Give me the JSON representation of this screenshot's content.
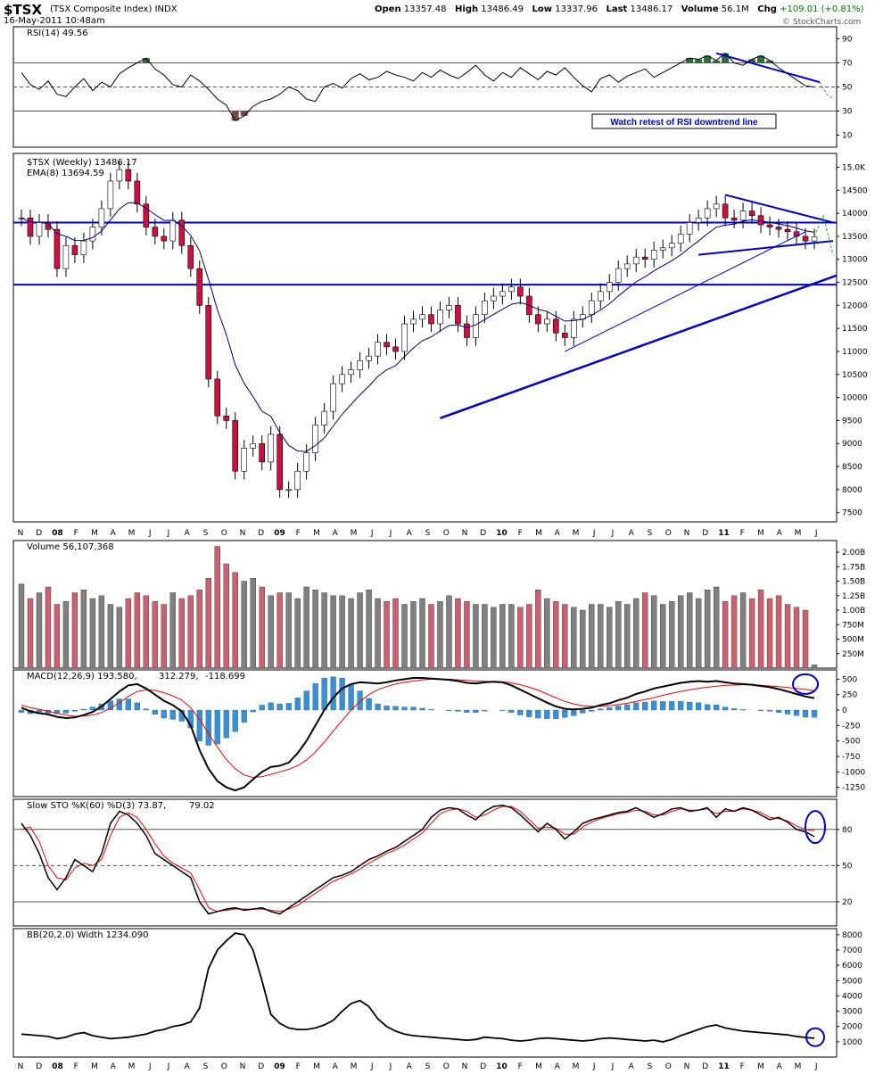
{
  "header": {
    "symbol": "$TSX",
    "name": "(TSX Composite Index)",
    "exchange": "INDX",
    "date": "16-May-2011 10:48am",
    "open_label": "Open",
    "open": "13357.48",
    "high_label": "High",
    "high": "13486.49",
    "low_label": "Low",
    "low": "13337.96",
    "last_label": "Last",
    "last": "13486.17",
    "volume_label": "Volume",
    "volume": "56.1M",
    "chg_label": "Chg",
    "chg": "+109.01 (+0.81%)",
    "chg_color": "#008000",
    "copyright": "© StockCharts.com"
  },
  "colors": {
    "up_candle": "#ffffff",
    "down_candle": "#cc1140",
    "trendline": "#0000cc",
    "ema": "#000080",
    "volume_up": "#808080",
    "volume_down": "#cc6070",
    "macd_hist": "#3a8fd0",
    "macd_signal": "#ff0000",
    "sto_d": "#ff0000",
    "rsi_overbought": "#2e6b3a",
    "rsi_oversold": "#7a4a4a",
    "projection": "#22aa22"
  },
  "x_axis": {
    "months": [
      "N",
      "D",
      "08",
      "F",
      "M",
      "A",
      "M",
      "J",
      "J",
      "A",
      "S",
      "O",
      "N",
      "D",
      "09",
      "F",
      "M",
      "A",
      "M",
      "J",
      "J",
      "A",
      "S",
      "O",
      "N",
      "D",
      "10",
      "F",
      "M",
      "A",
      "M",
      "J",
      "J",
      "A",
      "S",
      "O",
      "N",
      "D",
      "11",
      "F",
      "M",
      "A",
      "M",
      "J"
    ]
  },
  "chart_data": [
    {
      "type": "line",
      "title": "RSI(14) 49.56",
      "ylim": [
        0,
        100
      ],
      "yticks": [
        10,
        30,
        50,
        70,
        90
      ],
      "reference_lines": [
        30,
        50,
        70
      ],
      "annotation": "Watch retest of RSI downtrend line",
      "series": [
        {
          "name": "RSI(14)",
          "values": [
            62,
            52,
            48,
            55,
            44,
            42,
            50,
            57,
            47,
            54,
            50,
            61,
            66,
            70,
            74,
            65,
            60,
            52,
            50,
            60,
            55,
            48,
            40,
            35,
            22,
            26,
            34,
            38,
            40,
            44,
            50,
            47,
            40,
            38,
            50,
            53,
            49,
            57,
            61,
            56,
            58,
            63,
            60,
            58,
            55,
            62,
            58,
            64,
            60,
            57,
            62,
            68,
            60,
            55,
            62,
            58,
            66,
            61,
            56,
            63,
            60,
            66,
            58,
            51,
            46,
            57,
            60,
            54,
            59,
            62,
            65,
            58,
            62,
            66,
            70,
            74,
            73,
            76,
            72,
            78,
            70,
            68,
            73,
            76,
            72,
            66,
            61,
            56,
            51,
            50
          ]
        }
      ]
    },
    {
      "type": "candlestick",
      "title": "$TSX (Weekly) 13486.17",
      "ema_label": "EMA(8) 13694.59",
      "ylim": [
        7300,
        15300
      ],
      "yticks": [
        7500,
        8000,
        8500,
        9000,
        9500,
        10000,
        10500,
        11000,
        11500,
        12000,
        12500,
        13000,
        13500,
        14000,
        14500,
        "15.0K"
      ],
      "close": [
        13900,
        13500,
        13800,
        13650,
        12800,
        13300,
        13100,
        13400,
        13700,
        14100,
        14700,
        14950,
        14700,
        14200,
        13700,
        13500,
        13400,
        13850,
        13300,
        12800,
        12000,
        10400,
        9600,
        9500,
        8400,
        8900,
        9000,
        8600,
        9200,
        8000,
        8000,
        8400,
        8800,
        9400,
        9700,
        10300,
        10500,
        10600,
        10800,
        10900,
        11200,
        11100,
        11000,
        11600,
        11700,
        11800,
        11600,
        11900,
        12000,
        11600,
        11300,
        11800,
        12100,
        12200,
        12300,
        12400,
        12200,
        11800,
        11600,
        11700,
        11400,
        11300,
        11700,
        11800,
        12100,
        12300,
        12500,
        12800,
        12900,
        13050,
        13000,
        13200,
        13250,
        13350,
        13550,
        13800,
        13900,
        14100,
        14200,
        13900,
        13850,
        14050,
        13950,
        13750,
        13700,
        13650,
        13600,
        13500,
        13400,
        13486
      ]
    },
    {
      "type": "bar",
      "title": "Volume 56,107,368",
      "ylim": [
        0,
        2200
      ],
      "yticks": [
        "250M",
        "500M",
        "750M",
        "1.00B",
        "1.25B",
        "1.50B",
        "1.75B",
        "2.00B"
      ],
      "values": [
        1450,
        1200,
        1300,
        1400,
        1100,
        1150,
        1300,
        1350,
        1200,
        1250,
        1100,
        1050,
        1200,
        1300,
        1250,
        1150,
        1100,
        1300,
        1200,
        1250,
        1350,
        1550,
        2100,
        1800,
        1650,
        1500,
        1550,
        1400,
        1250,
        1300,
        1300,
        1200,
        1400,
        1350,
        1300,
        1250,
        1250,
        1200,
        1300,
        1350,
        1200,
        1150,
        1200,
        1100,
        1150,
        1200,
        1100,
        1150,
        1250,
        1200,
        1150,
        1100,
        1100,
        1050,
        1100,
        1100,
        1050,
        1100,
        1350,
        1200,
        1150,
        1100,
        1050,
        1000,
        1100,
        1100,
        1050,
        1150,
        1100,
        1200,
        1300,
        1250,
        1100,
        1150,
        1250,
        1300,
        1200,
        1350,
        1400,
        1150,
        1250,
        1300,
        1200,
        1350,
        1200,
        1250,
        1100,
        1050,
        1000,
        56
      ],
      "up": [
        true,
        false,
        true,
        false,
        false,
        true,
        false,
        true,
        true,
        true,
        true,
        true,
        false,
        false,
        false,
        false,
        false,
        true,
        false,
        false,
        false,
        false,
        false,
        false,
        false,
        true,
        true,
        false,
        true,
        false,
        true,
        true,
        true,
        true,
        true,
        true,
        true,
        true,
        true,
        true,
        true,
        false,
        false,
        true,
        true,
        true,
        false,
        true,
        true,
        false,
        false,
        true,
        true,
        true,
        true,
        true,
        false,
        false,
        false,
        true,
        false,
        false,
        true,
        true,
        true,
        true,
        true,
        true,
        true,
        true,
        false,
        true,
        true,
        true,
        true,
        true,
        true,
        true,
        true,
        false,
        false,
        true,
        false,
        false,
        false,
        false,
        false,
        false,
        false,
        true
      ]
    },
    {
      "type": "line",
      "title": "MACD(12,26,9) 193.580, 312.279, -118.699",
      "macd_label": "MACD(12,26,9) 193.580,",
      "signal_label": "312.279,",
      "hist_label": "-118.699",
      "ylim": [
        -1400,
        650
      ],
      "yticks": [
        -1250,
        -1000,
        -750,
        -500,
        -250,
        0,
        250,
        500
      ],
      "series": [
        {
          "name": "MACD",
          "values": [
            40,
            -20,
            -50,
            -70,
            -110,
            -130,
            -120,
            -80,
            -30,
            60,
            180,
            300,
            400,
            420,
            350,
            250,
            150,
            80,
            -20,
            -250,
            -650,
            -950,
            -1150,
            -1250,
            -1300,
            -1250,
            -1120,
            -1000,
            -920,
            -900,
            -850,
            -700,
            -500,
            -250,
            0,
            200,
            350,
            420,
            450,
            440,
            430,
            450,
            480,
            500,
            520,
            520,
            510,
            500,
            490,
            470,
            440,
            430,
            450,
            460,
            450,
            400,
            330,
            260,
            190,
            120,
            60,
            20,
            10,
            20,
            40,
            80,
            110,
            160,
            200,
            260,
            300,
            350,
            380,
            410,
            440,
            460,
            470,
            460,
            470,
            450,
            430,
            420,
            410,
            390,
            370,
            340,
            300,
            260,
            220,
            194
          ]
        },
        {
          "name": "Signal",
          "values": [
            80,
            40,
            10,
            -20,
            -50,
            -80,
            -100,
            -95,
            -80,
            -40,
            30,
            120,
            220,
            300,
            330,
            320,
            280,
            230,
            160,
            40,
            -150,
            -380,
            -600,
            -800,
            -950,
            -1050,
            -1090,
            -1080,
            -1040,
            -1000,
            -960,
            -900,
            -810,
            -680,
            -520,
            -340,
            -170,
            0,
            140,
            250,
            330,
            380,
            420,
            450,
            470,
            490,
            500,
            500,
            500,
            490,
            480,
            470,
            465,
            460,
            458,
            440,
            410,
            370,
            320,
            260,
            200,
            140,
            100,
            70,
            60,
            60,
            70,
            90,
            110,
            140,
            170,
            200,
            240,
            270,
            300,
            330,
            350,
            370,
            385,
            400,
            405,
            410,
            410,
            400,
            390,
            380,
            365,
            350,
            335,
            312
          ]
        }
      ]
    },
    {
      "type": "line",
      "title": "Slow STO %K(60) %D(3) 73.87, 79.02",
      "k_label": "Slow STO %K(60) %D(3) 73.87,",
      "d_label": "79.02",
      "ylim": [
        0,
        105
      ],
      "yticks": [
        20,
        50,
        80
      ],
      "reference_lines": [
        20,
        50,
        80
      ],
      "series": [
        {
          "name": "%K",
          "values": [
            85,
            75,
            60,
            40,
            30,
            40,
            55,
            50,
            45,
            60,
            85,
            95,
            92,
            85,
            75,
            60,
            55,
            50,
            45,
            40,
            20,
            10,
            12,
            14,
            15,
            13,
            14,
            15,
            12,
            10,
            15,
            20,
            25,
            30,
            35,
            40,
            42,
            45,
            50,
            55,
            58,
            62,
            65,
            70,
            75,
            80,
            90,
            96,
            98,
            97,
            92,
            88,
            95,
            99,
            100,
            98,
            92,
            85,
            78,
            85,
            80,
            72,
            78,
            85,
            88,
            90,
            92,
            94,
            95,
            98,
            94,
            90,
            93,
            97,
            98,
            95,
            96,
            98,
            90,
            97,
            95,
            98,
            96,
            92,
            88,
            90,
            86,
            80,
            78,
            74
          ]
        },
        {
          "name": "%D",
          "values": [
            80,
            82,
            70,
            50,
            40,
            38,
            48,
            52,
            50,
            55,
            75,
            90,
            94,
            90,
            80,
            68,
            58,
            52,
            48,
            44,
            30,
            15,
            12,
            13,
            14,
            14,
            14,
            14,
            13,
            12,
            14,
            17,
            22,
            27,
            32,
            37,
            40,
            43,
            47,
            52,
            56,
            60,
            63,
            67,
            72,
            77,
            85,
            93,
            96,
            97,
            95,
            90,
            92,
            96,
            99,
            99,
            95,
            88,
            81,
            82,
            81,
            76,
            76,
            82,
            86,
            89,
            91,
            93,
            94,
            96,
            95,
            92,
            92,
            95,
            97,
            96,
            96,
            97,
            93,
            95,
            95,
            97,
            96,
            94,
            90,
            89,
            87,
            83,
            80,
            79
          ]
        }
      ]
    },
    {
      "type": "line",
      "title": "BB(20,2.0) Width 1234.090",
      "ylim": [
        0,
        8400
      ],
      "yticks": [
        1000,
        2000,
        3000,
        4000,
        5000,
        6000,
        7000,
        8000
      ],
      "series": [
        {
          "name": "BB Width",
          "values": [
            1500,
            1450,
            1400,
            1350,
            1200,
            1300,
            1500,
            1600,
            1400,
            1300,
            1200,
            1250,
            1300,
            1400,
            1500,
            1700,
            1800,
            2000,
            2100,
            2300,
            3200,
            5800,
            7000,
            7600,
            8100,
            8000,
            7000,
            5000,
            2800,
            2200,
            1900,
            1800,
            1800,
            1900,
            2100,
            2400,
            3000,
            3500,
            3700,
            3300,
            2500,
            2000,
            1700,
            1500,
            1400,
            1350,
            1300,
            1250,
            1200,
            1150,
            1100,
            1150,
            1300,
            1250,
            1200,
            1100,
            1050,
            1100,
            1200,
            1250,
            1200,
            1150,
            1100,
            1050,
            1100,
            1200,
            1250,
            1200,
            1150,
            1100,
            1050,
            1100,
            1000,
            1150,
            1400,
            1600,
            1800,
            2000,
            2100,
            1900,
            1800,
            1700,
            1650,
            1600,
            1550,
            1500,
            1450,
            1350,
            1280,
            1234
          ]
        }
      ]
    }
  ]
}
